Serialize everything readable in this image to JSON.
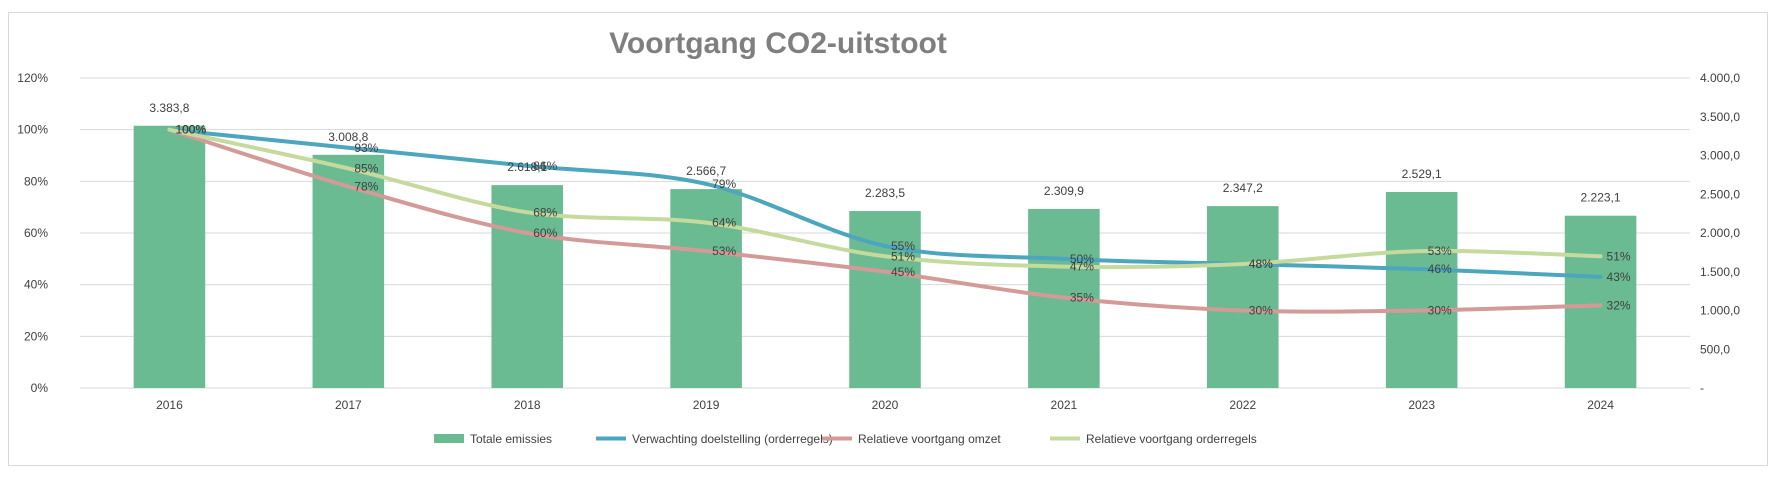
{
  "chart_data": {
    "type": "bar",
    "title": "Voortgang CO2-uitstoot",
    "categories": [
      "2016",
      "2017",
      "2018",
      "2019",
      "2020",
      "2021",
      "2022",
      "2023",
      "2024"
    ],
    "left_axis": {
      "ticks": [
        "0%",
        "20%",
        "40%",
        "60%",
        "80%",
        "100%",
        "120%"
      ],
      "ylim": [
        0,
        1.2
      ]
    },
    "right_axis": {
      "ticks": [
        "-",
        "500,0",
        "1.000,0",
        "1.500,0",
        "2.000,0",
        "2.500,0",
        "3.000,0",
        "3.500,0",
        "4.000,0"
      ],
      "ylim": [
        0,
        4000
      ]
    },
    "grid": true,
    "legend_position": "bottom",
    "series": [
      {
        "name": "Totale emissies",
        "kind": "bar",
        "axis": "right",
        "color": "#6bbb92",
        "values": [
          3383.8,
          3008.8,
          2618.1,
          2566.7,
          2283.5,
          2309.9,
          2347.2,
          2529.1,
          2223.1
        ],
        "labels": [
          "3.383,8",
          "3.008,8",
          "2.618,1",
          "2.566,7",
          "2.283,5",
          "2.309,9",
          "2.347,2",
          "2.529,1",
          "2.223,1"
        ]
      },
      {
        "name": "Verwachting doelstelling (orderregels)",
        "kind": "line",
        "axis": "left",
        "color": "#4ba6be",
        "values": [
          1.0,
          0.93,
          0.86,
          0.79,
          0.55,
          0.5,
          0.48,
          0.46,
          0.43
        ],
        "labels": [
          "100%",
          "93%",
          "86%",
          "79%",
          "55%",
          "50%",
          "48%",
          "46%",
          "43%"
        ]
      },
      {
        "name": "Relatieve voortgang omzet",
        "kind": "line",
        "axis": "left",
        "color": "#d49a97",
        "values": [
          1.0,
          0.78,
          0.6,
          0.53,
          0.45,
          0.35,
          0.3,
          0.3,
          0.32
        ],
        "labels": [
          "100%",
          "78%",
          "60%",
          "53%",
          "45%",
          "35%",
          "30%",
          "30%",
          "32%"
        ]
      },
      {
        "name": "Relatieve voortgang orderregels",
        "kind": "line",
        "axis": "left",
        "color": "#c6da9e",
        "values": [
          1.0,
          0.85,
          0.68,
          0.64,
          0.51,
          0.47,
          0.48,
          0.53,
          0.51
        ],
        "labels": [
          "100%",
          "85%",
          "68%",
          "64%",
          "51%",
          "47%",
          "48%",
          "53%",
          "51%"
        ]
      }
    ]
  }
}
